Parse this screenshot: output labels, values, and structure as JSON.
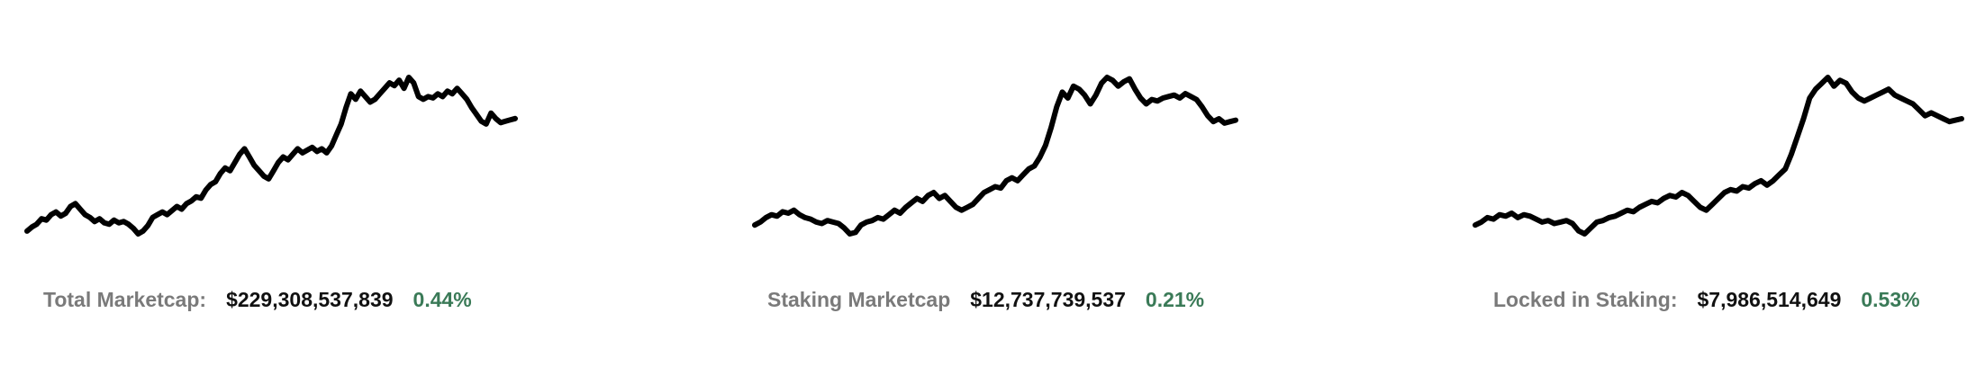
{
  "theme": {
    "line_color": "#000000",
    "label_color": "#7a7a7a",
    "value_color": "#111111",
    "positive_color": "#3a7a57"
  },
  "stats": [
    {
      "label": "Total Marketcap:",
      "value": "$229,308,537,839",
      "change": "0.44%"
    },
    {
      "label": "Staking Marketcap",
      "value": "$12,737,739,537",
      "change": "0.21%"
    },
    {
      "label": "Locked in Staking:",
      "value": "$7,986,514,649",
      "change": "0.53%"
    }
  ],
  "chart_data": [
    {
      "type": "line",
      "title": "",
      "xlabel": "",
      "ylabel": "",
      "grid": false,
      "series": [
        {
          "values": [
            0.0,
            0.03,
            0.05,
            0.09,
            0.08,
            0.12,
            0.14,
            0.11,
            0.13,
            0.18,
            0.2,
            0.16,
            0.12,
            0.1,
            0.07,
            0.09,
            0.06,
            0.05,
            0.08,
            0.06,
            0.07,
            0.05,
            0.02,
            -0.02,
            0.0,
            0.04,
            0.1,
            0.12,
            0.14,
            0.12,
            0.15,
            0.18,
            0.16,
            0.2,
            0.22,
            0.25,
            0.24,
            0.3,
            0.34,
            0.36,
            0.42,
            0.46,
            0.44,
            0.5,
            0.56,
            0.6,
            0.54,
            0.48,
            0.44,
            0.4,
            0.38,
            0.44,
            0.5,
            0.54,
            0.52,
            0.56,
            0.6,
            0.57,
            0.59,
            0.61,
            0.58,
            0.6,
            0.57,
            0.62,
            0.7,
            0.78,
            0.9,
            1.0,
            0.96,
            1.02,
            0.98,
            0.94,
            0.96,
            1.0,
            1.04,
            1.08,
            1.06,
            1.1,
            1.04,
            1.12,
            1.08,
            0.98,
            0.96,
            0.98,
            0.97,
            1.0,
            0.98,
            1.02,
            1.0,
            1.04,
            1.0,
            0.96,
            0.9,
            0.85,
            0.8,
            0.78,
            0.86,
            0.82,
            0.79,
            0.8,
            0.81,
            0.82
          ]
        }
      ]
    },
    {
      "type": "line",
      "title": "",
      "xlabel": "",
      "ylabel": "",
      "grid": false,
      "series": [
        {
          "values": [
            0.0,
            0.02,
            0.05,
            0.07,
            0.06,
            0.09,
            0.08,
            0.1,
            0.07,
            0.05,
            0.04,
            0.02,
            0.01,
            0.03,
            0.02,
            0.01,
            -0.02,
            -0.06,
            -0.05,
            0.0,
            0.02,
            0.03,
            0.05,
            0.04,
            0.07,
            0.1,
            0.08,
            0.12,
            0.15,
            0.18,
            0.16,
            0.2,
            0.22,
            0.18,
            0.2,
            0.16,
            0.12,
            0.1,
            0.12,
            0.14,
            0.18,
            0.22,
            0.24,
            0.26,
            0.25,
            0.3,
            0.32,
            0.3,
            0.34,
            0.38,
            0.4,
            0.46,
            0.54,
            0.66,
            0.8,
            0.9,
            0.86,
            0.94,
            0.92,
            0.88,
            0.82,
            0.88,
            0.96,
            1.0,
            0.98,
            0.94,
            0.97,
            0.99,
            0.92,
            0.86,
            0.82,
            0.85,
            0.84,
            0.86,
            0.87,
            0.88,
            0.86,
            0.89,
            0.87,
            0.85,
            0.8,
            0.74,
            0.7,
            0.72,
            0.69,
            0.7,
            0.71
          ]
        }
      ]
    },
    {
      "type": "line",
      "title": "",
      "xlabel": "",
      "ylabel": "",
      "grid": false,
      "series": [
        {
          "values": [
            0.0,
            0.02,
            0.05,
            0.04,
            0.07,
            0.06,
            0.08,
            0.05,
            0.07,
            0.06,
            0.04,
            0.02,
            0.03,
            0.01,
            0.02,
            0.03,
            0.01,
            -0.04,
            -0.06,
            -0.02,
            0.02,
            0.03,
            0.05,
            0.06,
            0.08,
            0.1,
            0.09,
            0.12,
            0.14,
            0.16,
            0.15,
            0.18,
            0.2,
            0.19,
            0.22,
            0.2,
            0.16,
            0.12,
            0.1,
            0.14,
            0.18,
            0.22,
            0.24,
            0.23,
            0.26,
            0.25,
            0.28,
            0.3,
            0.27,
            0.3,
            0.34,
            0.38,
            0.48,
            0.6,
            0.72,
            0.86,
            0.92,
            0.96,
            1.0,
            0.94,
            0.98,
            0.96,
            0.9,
            0.86,
            0.84,
            0.86,
            0.88,
            0.9,
            0.92,
            0.88,
            0.86,
            0.84,
            0.82,
            0.78,
            0.74,
            0.76,
            0.74,
            0.72,
            0.7,
            0.71,
            0.72
          ]
        }
      ]
    }
  ]
}
